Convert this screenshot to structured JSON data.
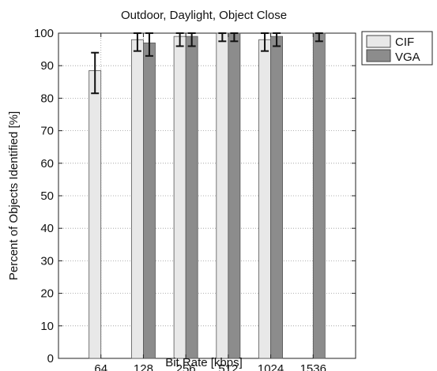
{
  "chart_data": {
    "type": "bar",
    "title": "Outdoor, Daylight, Object Close",
    "xlabel": "Bit Rate [kbps]",
    "ylabel": "Percent of Objects Identified [%]",
    "categories": [
      "64",
      "128",
      "256",
      "512",
      "1024",
      "1536"
    ],
    "ylim": [
      0,
      100
    ],
    "yticks": [
      0,
      10,
      20,
      30,
      40,
      50,
      60,
      70,
      80,
      90,
      100
    ],
    "grid": true,
    "legend_position": "outside-top-right",
    "series": [
      {
        "name": "CIF",
        "color": "#e8e8e8",
        "values": [
          88.5,
          98,
          99,
          100,
          98,
          null
        ],
        "err_low": [
          81.5,
          94.5,
          96,
          97.5,
          94.5,
          null
        ],
        "err_high": [
          94,
          100,
          100,
          100,
          100,
          null
        ]
      },
      {
        "name": "VGA",
        "color": "#8c8c8c",
        "values": [
          null,
          97,
          99,
          100,
          99,
          100
        ],
        "err_low": [
          null,
          93,
          96,
          97.5,
          96,
          97.5
        ],
        "err_high": [
          null,
          100,
          100,
          100,
          100,
          100
        ]
      }
    ]
  }
}
